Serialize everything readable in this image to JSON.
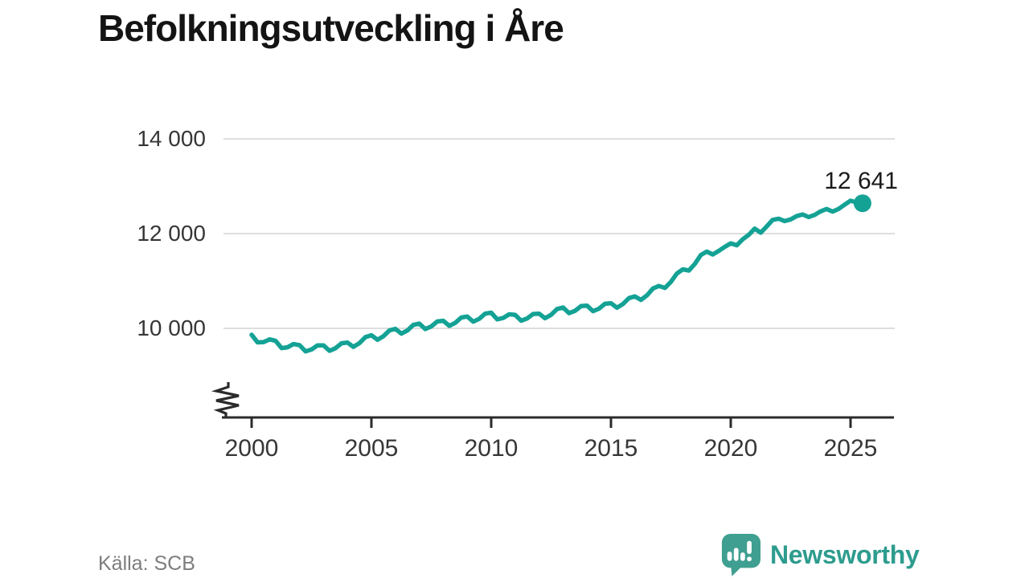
{
  "title": "Befolkningsutveckling i Åre",
  "source_caption": "Källa: SCB",
  "branding": {
    "logo_text": "Newsworthy",
    "logo_icon": "speech-bubble-with-bar-chart-and-exclamation"
  },
  "colors": {
    "line": "#14a295",
    "end_marker": "#14a295",
    "logo_bubble": "#3f9f90",
    "logo_text": "#2d9c8e",
    "title_text": "#141414",
    "axis_text": "#363636",
    "axis_line": "#2b2b2b",
    "gridline": "#dedede",
    "source_text": "#7d7d7d"
  },
  "chart_data": {
    "type": "line",
    "title": "Befolkningsutveckling i Åre",
    "xlabel": "",
    "ylabel": "",
    "legend": "none",
    "grid": "horizontal",
    "y_axis_break": true,
    "xlim": [
      1999.6,
      2026.8
    ],
    "ylim_visible": [
      9300,
      14000
    ],
    "x_tick_values": [
      2000,
      2005,
      2010,
      2015,
      2020,
      2025
    ],
    "x_label_ticks": [
      "2000",
      "2005",
      "2010",
      "2015",
      "2020",
      "2025"
    ],
    "y_tick_values": [
      14000,
      12000,
      10000
    ],
    "y_label_ticks": [
      "14 000",
      "12 000",
      "10 000"
    ],
    "end_point": {
      "x": 2025.5,
      "value": 12641,
      "label": "12 641"
    },
    "series": [
      {
        "name": "population",
        "points": [
          [
            2000.0,
            9865
          ],
          [
            2000.25,
            9703
          ],
          [
            2000.5,
            9710
          ],
          [
            2000.75,
            9768
          ],
          [
            2001.0,
            9735
          ],
          [
            2001.25,
            9583
          ],
          [
            2001.5,
            9600
          ],
          [
            2001.75,
            9668
          ],
          [
            2002.0,
            9645
          ],
          [
            2002.25,
            9514
          ],
          [
            2002.5,
            9553
          ],
          [
            2002.75,
            9641
          ],
          [
            2003.0,
            9640
          ],
          [
            2003.25,
            9525
          ],
          [
            2003.5,
            9580
          ],
          [
            2003.75,
            9685
          ],
          [
            2004.0,
            9700
          ],
          [
            2004.25,
            9609
          ],
          [
            2004.5,
            9688
          ],
          [
            2004.75,
            9816
          ],
          [
            2005.0,
            9855
          ],
          [
            2005.25,
            9759
          ],
          [
            2005.5,
            9833
          ],
          [
            2005.75,
            9956
          ],
          [
            2006.0,
            9990
          ],
          [
            2006.25,
            9888
          ],
          [
            2006.5,
            9955
          ],
          [
            2006.75,
            10073
          ],
          [
            2007.0,
            10100
          ],
          [
            2007.25,
            9985
          ],
          [
            2007.5,
            10040
          ],
          [
            2007.75,
            10145
          ],
          [
            2008.0,
            10160
          ],
          [
            2008.25,
            10053
          ],
          [
            2008.5,
            10115
          ],
          [
            2008.75,
            10228
          ],
          [
            2009.0,
            10250
          ],
          [
            2009.25,
            10140
          ],
          [
            2009.5,
            10200
          ],
          [
            2009.75,
            10310
          ],
          [
            2010.0,
            10330
          ],
          [
            2010.25,
            10189
          ],
          [
            2010.5,
            10218
          ],
          [
            2010.75,
            10296
          ],
          [
            2011.0,
            10285
          ],
          [
            2011.25,
            10161
          ],
          [
            2011.5,
            10208
          ],
          [
            2011.75,
            10304
          ],
          [
            2012.0,
            10310
          ],
          [
            2012.25,
            10213
          ],
          [
            2012.5,
            10285
          ],
          [
            2012.75,
            10408
          ],
          [
            2013.0,
            10440
          ],
          [
            2013.25,
            10320
          ],
          [
            2013.5,
            10370
          ],
          [
            2013.75,
            10470
          ],
          [
            2014.0,
            10480
          ],
          [
            2014.25,
            10363
          ],
          [
            2014.5,
            10415
          ],
          [
            2014.75,
            10518
          ],
          [
            2015.0,
            10530
          ],
          [
            2015.25,
            10436
          ],
          [
            2015.5,
            10513
          ],
          [
            2015.75,
            10639
          ],
          [
            2016.0,
            10675
          ],
          [
            2016.25,
            10600
          ],
          [
            2016.5,
            10695
          ],
          [
            2016.75,
            10840
          ],
          [
            2017.0,
            10895
          ],
          [
            2017.25,
            10853
          ],
          [
            2017.5,
            10980
          ],
          [
            2017.75,
            11158
          ],
          [
            2018.0,
            11245
          ],
          [
            2018.25,
            11220
          ],
          [
            2018.5,
            11360
          ],
          [
            2018.75,
            11550
          ],
          [
            2019.0,
            11620
          ],
          [
            2019.25,
            11560
          ],
          [
            2019.5,
            11635
          ],
          [
            2019.75,
            11720
          ],
          [
            2020.0,
            11795
          ],
          [
            2020.25,
            11755
          ],
          [
            2020.5,
            11880
          ],
          [
            2020.75,
            11975
          ],
          [
            2021.0,
            12105
          ],
          [
            2021.25,
            12020
          ],
          [
            2021.5,
            12150
          ],
          [
            2021.75,
            12290
          ],
          [
            2022.0,
            12315
          ],
          [
            2022.25,
            12265
          ],
          [
            2022.5,
            12300
          ],
          [
            2022.75,
            12370
          ],
          [
            2023.0,
            12405
          ],
          [
            2023.25,
            12350
          ],
          [
            2023.5,
            12395
          ],
          [
            2023.75,
            12470
          ],
          [
            2024.0,
            12520
          ],
          [
            2024.25,
            12465
          ],
          [
            2024.5,
            12520
          ],
          [
            2024.75,
            12610
          ],
          [
            2025.0,
            12695
          ],
          [
            2025.25,
            12660
          ],
          [
            2025.5,
            12641
          ]
        ]
      }
    ]
  }
}
